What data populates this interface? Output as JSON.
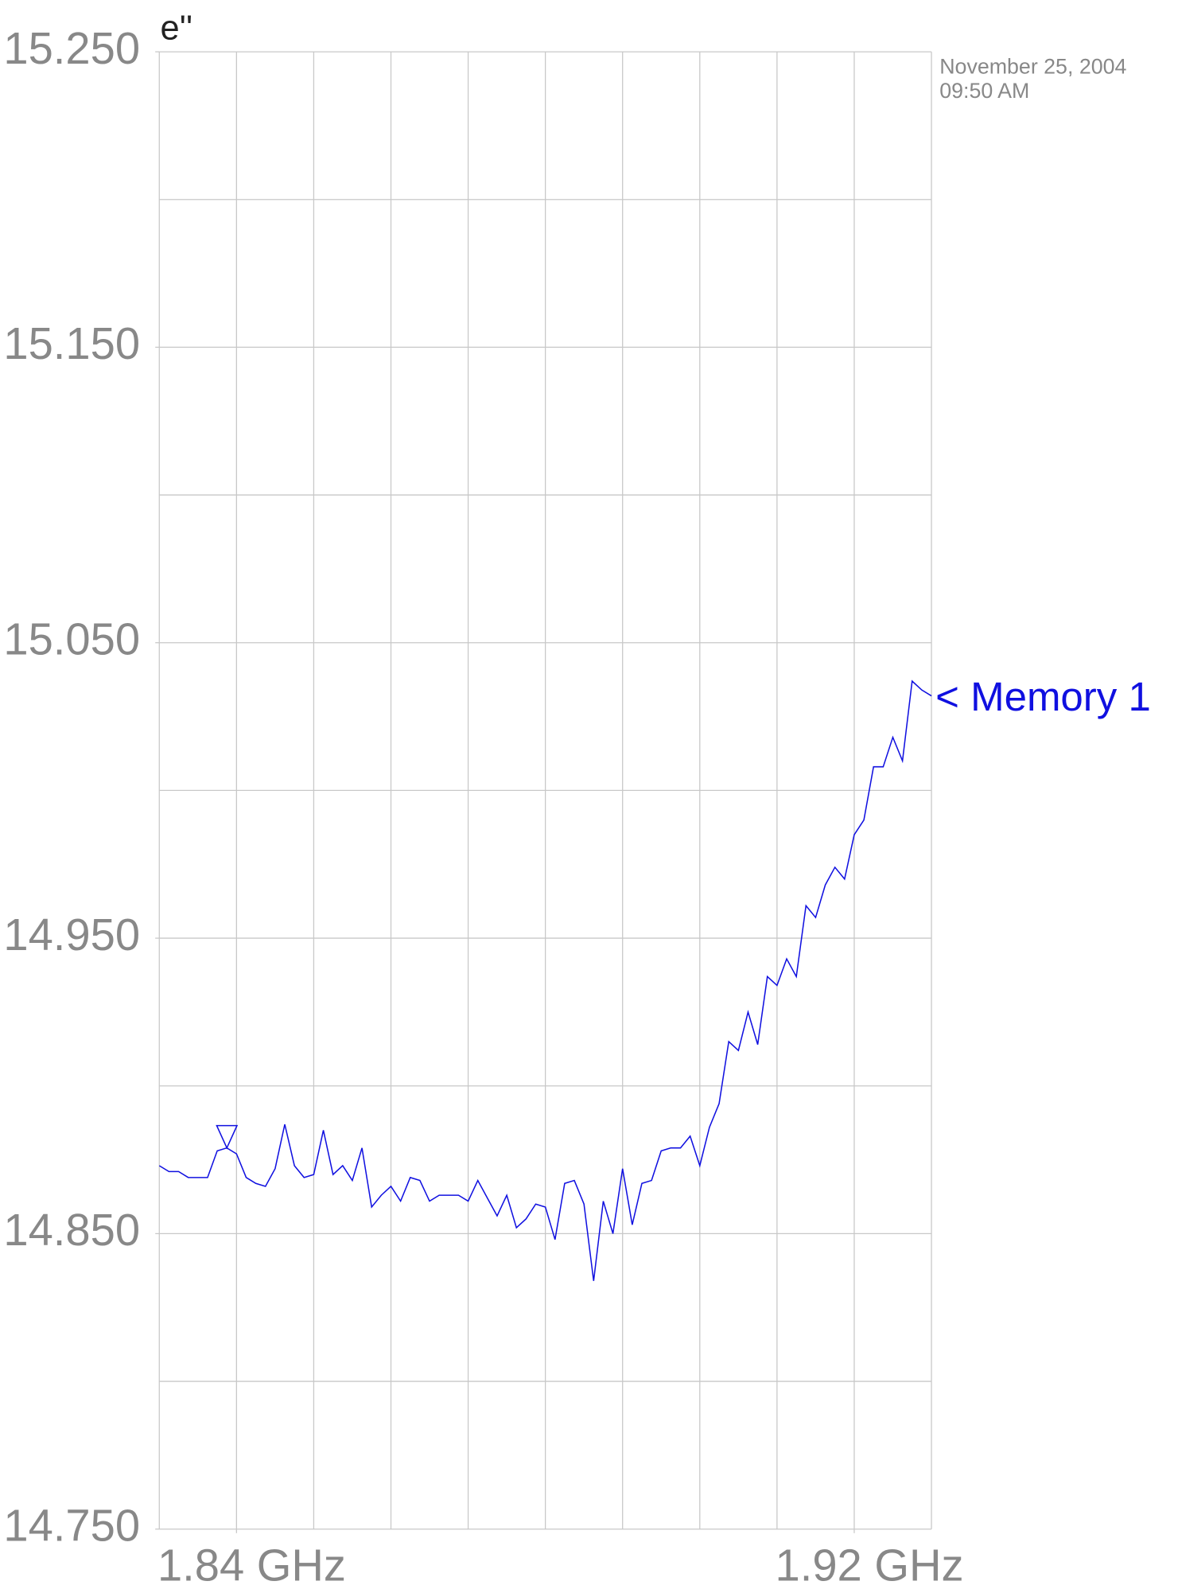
{
  "chart_data": {
    "type": "line",
    "title": "e''",
    "date": "November 25, 2004",
    "time": "09:50 AM",
    "xlim": [
      1.83,
      1.93
    ],
    "ylim": [
      14.75,
      15.25
    ],
    "xticks": [
      {
        "value": 1.84,
        "label": "1.84 GHz"
      },
      {
        "value": 1.92,
        "label": "1.92 GHz"
      }
    ],
    "yticks": [
      {
        "value": 15.25,
        "label": "15.250"
      },
      {
        "value": 15.15,
        "label": "15.150"
      },
      {
        "value": 15.05,
        "label": "15.050"
      },
      {
        "value": 14.95,
        "label": "14.950"
      },
      {
        "value": 14.85,
        "label": "14.850"
      },
      {
        "value": 14.75,
        "label": "14.750"
      }
    ],
    "xgrid": [
      1.83,
      1.84,
      1.85,
      1.86,
      1.87,
      1.88,
      1.89,
      1.9,
      1.91,
      1.92,
      1.93
    ],
    "ygrid": [
      15.25,
      15.2,
      15.15,
      15.1,
      15.05,
      15.0,
      14.95,
      14.9,
      14.85,
      14.8,
      14.75
    ],
    "grid": true,
    "marker": {
      "x": 1.83875,
      "y": 14.879
    },
    "x": [
      1.83,
      1.83125,
      1.8325,
      1.83375,
      1.835,
      1.83625,
      1.8375,
      1.83875,
      1.84,
      1.84125,
      1.8425,
      1.84375,
      1.845,
      1.84625,
      1.8475,
      1.84875,
      1.85,
      1.85125,
      1.8525,
      1.85375,
      1.855,
      1.85625,
      1.8575,
      1.85875,
      1.86,
      1.86125,
      1.8625,
      1.86375,
      1.865,
      1.86625,
      1.8675,
      1.86875,
      1.87,
      1.87125,
      1.8725,
      1.87375,
      1.875,
      1.87625,
      1.8775,
      1.87875,
      1.88,
      1.88125,
      1.8825,
      1.88375,
      1.885,
      1.88625,
      1.8875,
      1.88875,
      1.89,
      1.89125,
      1.8925,
      1.89375,
      1.895,
      1.89625,
      1.8975,
      1.89875,
      1.9,
      1.90125,
      1.9025,
      1.90375,
      1.905,
      1.90625,
      1.9075,
      1.90875,
      1.91,
      1.91125,
      1.9125,
      1.91375,
      1.915,
      1.91625,
      1.9175,
      1.91875,
      1.92,
      1.92125,
      1.9225,
      1.92375,
      1.925,
      1.92625,
      1.9275,
      1.92875,
      1.93
    ],
    "series": [
      {
        "name": "< Memory 1",
        "color": "#1010e0",
        "values": [
          14.873,
          14.871,
          14.871,
          14.869,
          14.869,
          14.869,
          14.878,
          14.879,
          14.877,
          14.869,
          14.867,
          14.866,
          14.872,
          14.887,
          14.873,
          14.869,
          14.87,
          14.885,
          14.87,
          14.873,
          14.868,
          14.879,
          14.859,
          14.863,
          14.866,
          14.861,
          14.869,
          14.868,
          14.861,
          14.863,
          14.863,
          14.863,
          14.861,
          14.868,
          14.862,
          14.856,
          14.863,
          14.852,
          14.855,
          14.86,
          14.859,
          14.848,
          14.867,
          14.868,
          14.86,
          14.834,
          14.861,
          14.85,
          14.872,
          14.853,
          14.867,
          14.868,
          14.878,
          14.879,
          14.879,
          14.883,
          14.873,
          14.886,
          14.894,
          14.915,
          14.912,
          14.925,
          14.914,
          14.937,
          14.934,
          14.943,
          14.937,
          14.961,
          14.957,
          14.968,
          14.974,
          14.97,
          14.985,
          14.99,
          15.008,
          15.008,
          15.018,
          15.01,
          15.037,
          15.034,
          15.032
        ]
      }
    ]
  }
}
